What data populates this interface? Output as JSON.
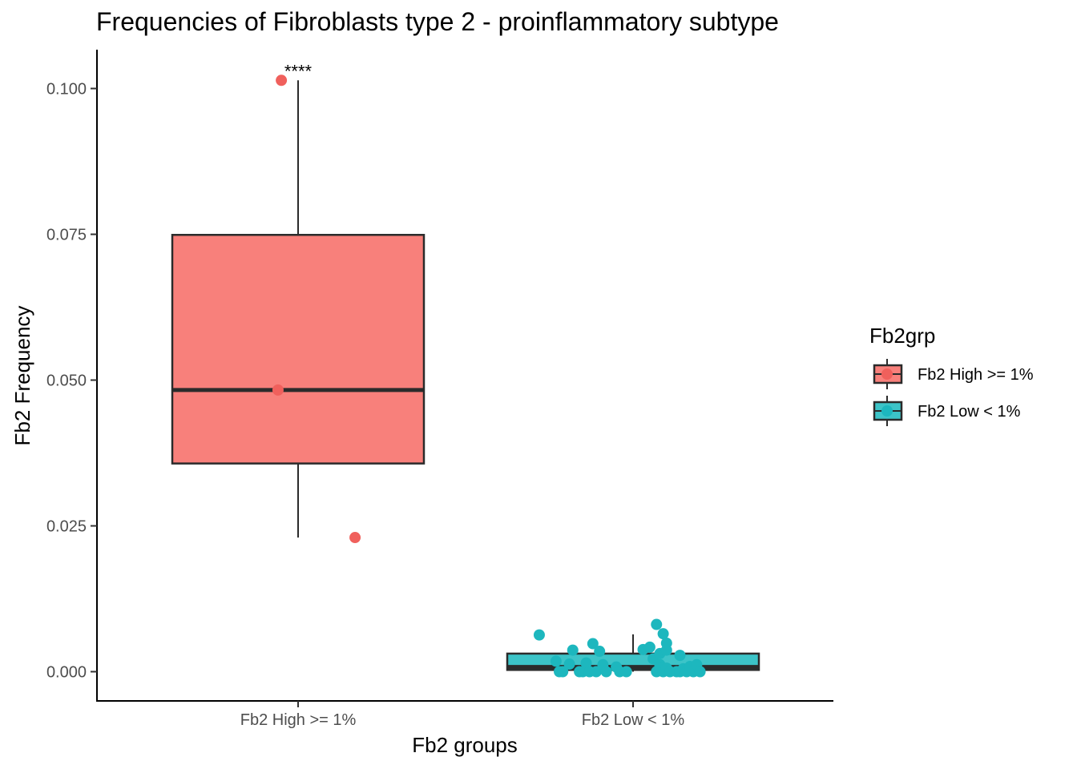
{
  "chart_data": {
    "type": "box",
    "title": "Frequencies of Fibroblasts type 2 - proinflammatory subtype",
    "xlabel": "Fb2 groups",
    "ylabel": "Fb2 Frequency",
    "ylim": [
      -0.005,
      0.1065
    ],
    "yticks": [
      0.0,
      0.025,
      0.05,
      0.075,
      0.1
    ],
    "ytick_labels": [
      "0.000",
      "0.025",
      "0.050",
      "0.075",
      "0.100"
    ],
    "categories": [
      "Fb2 High >= 1%",
      "Fb2 Low < 1%"
    ],
    "grid": false,
    "legend": {
      "title": "Fb2grp",
      "position": "right",
      "items": [
        "Fb2 High >= 1%",
        "Fb2 Low < 1%"
      ]
    },
    "colors": {
      "high_fill": "#F8807B",
      "high_point": "#F0605C",
      "low_fill": "#3CC4C8",
      "low_point": "#1DB7BE",
      "box_line": "#2b2b2b"
    },
    "series": [
      {
        "name": "Fb2 High >= 1%",
        "box": {
          "lower_whisker": 0.023,
          "q1": 0.0357,
          "median": 0.0483,
          "q3": 0.0749,
          "upper_whisker": 0.1014
        },
        "points": [
          {
            "x": -0.05,
            "y": 0.1014
          },
          {
            "x": -0.06,
            "y": 0.0483
          },
          {
            "x": 0.17,
            "y": 0.023
          }
        ]
      },
      {
        "name": "Fb2 Low < 1%",
        "box": {
          "lower_whisker": 0.0,
          "q1": 0.0003,
          "median": 0.0008,
          "q3": 0.0031,
          "upper_whisker": 0.0064
        },
        "points": [
          {
            "x": -0.28,
            "y": 0.0063
          },
          {
            "x": -0.23,
            "y": 0.0018
          },
          {
            "x": -0.22,
            "y": 0.0
          },
          {
            "x": -0.21,
            "y": 0.0
          },
          {
            "x": -0.19,
            "y": 0.0013
          },
          {
            "x": -0.18,
            "y": 0.0037
          },
          {
            "x": -0.16,
            "y": 0.0
          },
          {
            "x": -0.15,
            "y": 0.0
          },
          {
            "x": -0.14,
            "y": 0.0015
          },
          {
            "x": -0.13,
            "y": 0.0
          },
          {
            "x": -0.12,
            "y": 0.0048
          },
          {
            "x": -0.11,
            "y": 0.0
          },
          {
            "x": -0.1,
            "y": 0.0035
          },
          {
            "x": -0.09,
            "y": 0.0012
          },
          {
            "x": -0.08,
            "y": 0.0
          },
          {
            "x": -0.05,
            "y": 0.0008
          },
          {
            "x": -0.04,
            "y": 0.0
          },
          {
            "x": -0.02,
            "y": 0.0
          },
          {
            "x": 0.03,
            "y": 0.0038
          },
          {
            "x": 0.05,
            "y": 0.0042
          },
          {
            "x": 0.06,
            "y": 0.0022
          },
          {
            "x": 0.07,
            "y": 0.0081
          },
          {
            "x": 0.07,
            "y": 0.0
          },
          {
            "x": 0.08,
            "y": 0.0012
          },
          {
            "x": 0.08,
            "y": 0.0031
          },
          {
            "x": 0.08,
            "y": 0.0007
          },
          {
            "x": 0.09,
            "y": 0.0065
          },
          {
            "x": 0.09,
            "y": 0.0
          },
          {
            "x": 0.1,
            "y": 0.0049
          },
          {
            "x": 0.1,
            "y": 0.0037
          },
          {
            "x": 0.1,
            "y": 0.0006
          },
          {
            "x": 0.11,
            "y": 0.0
          },
          {
            "x": 0.13,
            "y": 0.0
          },
          {
            "x": 0.14,
            "y": 0.0028
          },
          {
            "x": 0.14,
            "y": 0.0
          },
          {
            "x": 0.15,
            "y": 0.0005
          },
          {
            "x": 0.16,
            "y": 0.0
          },
          {
            "x": 0.17,
            "y": 0.0009
          },
          {
            "x": 0.18,
            "y": 0.0
          },
          {
            "x": 0.19,
            "y": 0.0012
          },
          {
            "x": 0.2,
            "y": 0.0
          }
        ]
      }
    ],
    "annotations": [
      {
        "text": "****",
        "category": "Fb2 High >= 1%",
        "y": 0.1014
      }
    ]
  }
}
